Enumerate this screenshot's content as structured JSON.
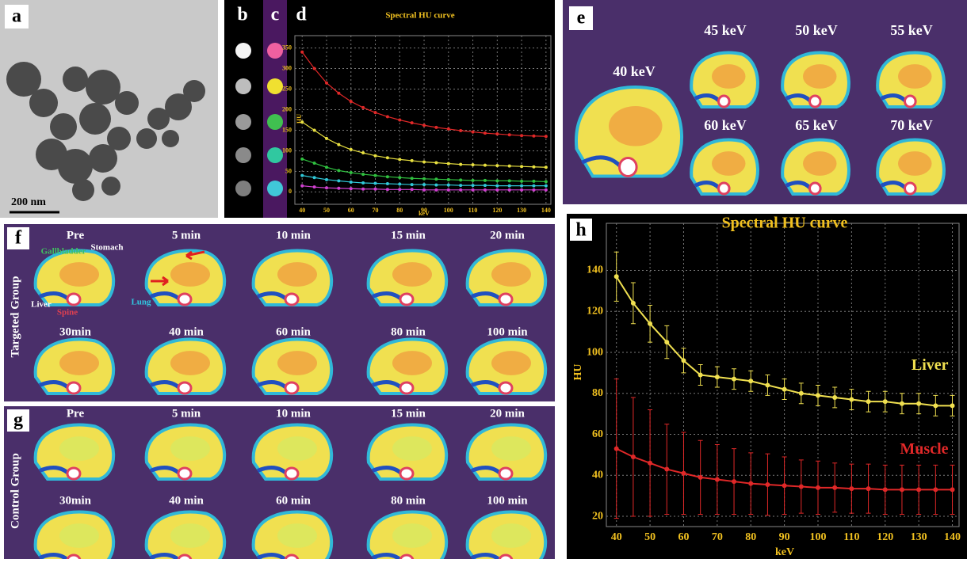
{
  "panel_labels": [
    "a",
    "b",
    "c",
    "d",
    "e",
    "f",
    "g",
    "h"
  ],
  "scale_bar": "200 nm",
  "panel_e": {
    "energies": [
      "40 keV",
      "45 keV",
      "50 keV",
      "55 keV",
      "60 keV",
      "65 keV",
      "70 keV"
    ]
  },
  "panel_f": {
    "group": "Targeted Group",
    "times": [
      "Pre",
      "5 min",
      "10 min",
      "15 min",
      "20 min",
      "30min",
      "40 min",
      "60 min",
      "80 min",
      "100 min"
    ],
    "organs": [
      "Gallbladder",
      "Stomach",
      "Liver",
      "Spine",
      "Lung"
    ]
  },
  "panel_g": {
    "group": "Control Group",
    "times": [
      "Pre",
      "5 min",
      "10 min",
      "15 min",
      "20 min",
      "30min",
      "40 min",
      "60 min",
      "80 min",
      "100 min"
    ]
  },
  "chart_data": [
    {
      "type": "line",
      "title": "Spectral HU curve",
      "x_label": "keV",
      "y_label": "HU",
      "x": [
        40,
        45,
        50,
        55,
        60,
        65,
        70,
        75,
        80,
        85,
        90,
        95,
        100,
        105,
        110,
        115,
        120,
        125,
        130,
        135,
        140
      ],
      "xlim": [
        37,
        142
      ],
      "ylim": [
        -30,
        380
      ],
      "xticks": [
        40,
        50,
        60,
        70,
        80,
        90,
        100,
        110,
        120,
        130,
        140
      ],
      "yticks": [
        0,
        50,
        100,
        150,
        200,
        250,
        300,
        350
      ],
      "grid": true,
      "series": [
        {
          "color": "#e02828",
          "values": [
            340,
            300,
            265,
            240,
            220,
            205,
            193,
            183,
            175,
            168,
            162,
            157,
            153,
            149,
            146,
            143,
            141,
            139,
            137,
            136,
            135
          ]
        },
        {
          "color": "#e8e040",
          "values": [
            170,
            150,
            130,
            115,
            103,
            95,
            88,
            83,
            79,
            76,
            73,
            71,
            69,
            67,
            66,
            65,
            64,
            63,
            62,
            61,
            60
          ]
        },
        {
          "color": "#30c040",
          "values": [
            80,
            70,
            60,
            52,
            47,
            43,
            40,
            37,
            35,
            33,
            32,
            31,
            30,
            29,
            28,
            28,
            27,
            27,
            26,
            26,
            25
          ]
        },
        {
          "color": "#30c8d8",
          "values": [
            40,
            35,
            30,
            27,
            24,
            22,
            21,
            20,
            19,
            18,
            18,
            17,
            17,
            16,
            16,
            16,
            15,
            15,
            15,
            15,
            15
          ]
        },
        {
          "color": "#d040d0",
          "values": [
            15,
            12,
            10,
            9,
            8,
            7,
            7,
            6,
            6,
            6,
            5,
            5,
            5,
            5,
            5,
            5,
            5,
            5,
            5,
            5,
            5
          ]
        }
      ]
    },
    {
      "type": "line",
      "title": "Spectral HU curve",
      "x_label": "keV",
      "y_label": "HU",
      "x": [
        40,
        45,
        50,
        55,
        60,
        65,
        70,
        75,
        80,
        85,
        90,
        95,
        100,
        105,
        110,
        115,
        120,
        125,
        130,
        135,
        140
      ],
      "xlim": [
        37,
        142
      ],
      "ylim": [
        15,
        163
      ],
      "xticks": [
        40,
        50,
        60,
        70,
        80,
        90,
        100,
        110,
        120,
        130,
        140
      ],
      "yticks": [
        20,
        40,
        60,
        80,
        100,
        120,
        140
      ],
      "grid": true,
      "series": [
        {
          "name": "Liver",
          "color": "#f0e050",
          "values": [
            137,
            124,
            114,
            105,
            96,
            89,
            88,
            87,
            86,
            84,
            82,
            80,
            79,
            78,
            77,
            76,
            76,
            75,
            75,
            74,
            74
          ],
          "errors": [
            12,
            10,
            9,
            8,
            6,
            5,
            5,
            5,
            5,
            5,
            5,
            5,
            5,
            5,
            5,
            5,
            5,
            5,
            5,
            5,
            5
          ]
        },
        {
          "name": "Muscle",
          "color": "#e02828",
          "values": [
            53,
            49,
            46,
            43,
            41,
            39,
            38,
            37,
            36,
            35.5,
            35,
            34.5,
            34,
            34,
            33.5,
            33.5,
            33,
            33,
            33,
            33,
            33
          ],
          "errors": [
            34,
            29,
            26,
            22,
            20,
            18,
            17,
            16,
            15,
            15,
            14,
            13,
            13,
            12,
            12,
            12,
            12,
            12,
            12,
            12,
            12
          ]
        }
      ]
    }
  ]
}
